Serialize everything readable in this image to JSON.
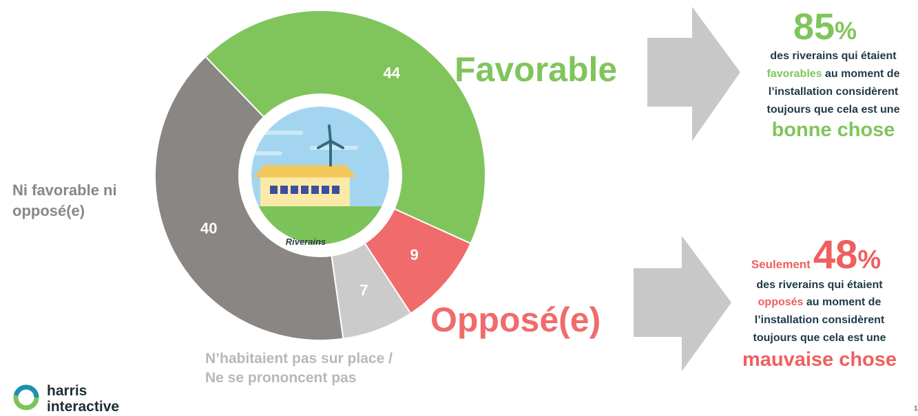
{
  "chart_data": {
    "type": "donut",
    "categories": [
      "Favorable",
      "Opposé(e)",
      "N’habitaient pas sur place / Ne se prononcent pas",
      "Ni favorable ni opposé(e)"
    ],
    "values": [
      44,
      9,
      7,
      40
    ],
    "colors": [
      "#80c55c",
      "#f06b6b",
      "#cbcbcb",
      "#8a8684"
    ],
    "center_label": "Riverains"
  },
  "callouts": [
    {
      "value": "85",
      "unit": "%",
      "line1": "des riverains qui étaient",
      "highlight": "favorables",
      "line2_rest": " au moment de",
      "line3": "l’installation considèrent",
      "line4": "toujours que cela est une",
      "conclusion": "bonne chose"
    },
    {
      "lead": "Seulement",
      "value": "48",
      "unit": "%",
      "line1": "des riverains qui étaient",
      "highlight": "opposés",
      "line2_rest": " au moment de",
      "line3": "l’installation considèrent",
      "line4": "toujours que cela est une",
      "conclusion": "mauvaise chose"
    }
  ],
  "logo": {
    "lines": [
      "harris",
      "interactive"
    ]
  },
  "page_number": "1"
}
